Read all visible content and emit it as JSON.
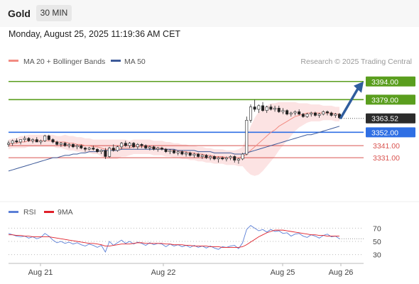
{
  "header": {
    "symbol": "Gold",
    "timeframe": "30 MIN",
    "datetime": "Monday, August 25, 2025 11:19:36 AM CET"
  },
  "legend": {
    "ma20": {
      "label": "MA 20 + Bollinger Bands",
      "color": "#f28b82"
    },
    "ma50": {
      "label": "MA 50",
      "color": "#3d5a99"
    },
    "copyright": "Research © 2025 Trading Central"
  },
  "rsi_legend": {
    "rsi": {
      "label": "RSI",
      "color": "#5b7fd6"
    },
    "ma9": {
      "label": "9MA",
      "color": "#e0202a"
    }
  },
  "levels": [
    {
      "value": "3394.00",
      "color": "#5a9e1e",
      "style": "box"
    },
    {
      "value": "3379.00",
      "color": "#5a9e1e",
      "style": "box"
    },
    {
      "value": "3363.52",
      "color": "#333333",
      "style": "price"
    },
    {
      "value": "3352.00",
      "color": "#2f6fe4",
      "style": "box"
    },
    {
      "value": "3341.00",
      "color": "#d9534f",
      "style": "text"
    },
    {
      "value": "3331.00",
      "color": "#d9534f",
      "style": "text"
    }
  ],
  "x_ticks": [
    "Aug 21",
    "Aug 22",
    "Aug 25",
    "Aug 26"
  ],
  "rsi_ticks": [
    "70",
    "50",
    "30"
  ],
  "chart_data": {
    "type": "candlestick",
    "price_ylim": [
      3300,
      3405
    ],
    "rsi_ylim": [
      20,
      80
    ],
    "ohlc": [
      [
        3342,
        3345,
        3340,
        3343
      ],
      [
        3343,
        3346,
        3341,
        3345
      ],
      [
        3345,
        3347,
        3343,
        3344
      ],
      [
        3344,
        3346,
        3342,
        3346
      ],
      [
        3346,
        3349,
        3344,
        3347
      ],
      [
        3347,
        3348,
        3344,
        3345
      ],
      [
        3345,
        3347,
        3343,
        3346
      ],
      [
        3346,
        3348,
        3344,
        3344
      ],
      [
        3344,
        3346,
        3342,
        3345
      ],
      [
        3345,
        3350,
        3344,
        3349
      ],
      [
        3349,
        3350,
        3345,
        3346
      ],
      [
        3346,
        3347,
        3343,
        3344
      ],
      [
        3344,
        3345,
        3341,
        3342
      ],
      [
        3342,
        3344,
        3340,
        3343
      ],
      [
        3343,
        3344,
        3340,
        3341
      ],
      [
        3341,
        3343,
        3339,
        3342
      ],
      [
        3342,
        3343,
        3339,
        3340
      ],
      [
        3340,
        3342,
        3338,
        3341
      ],
      [
        3341,
        3342,
        3338,
        3339
      ],
      [
        3339,
        3340,
        3336,
        3338
      ],
      [
        3338,
        3340,
        3337,
        3339
      ],
      [
        3339,
        3341,
        3337,
        3338
      ],
      [
        3338,
        3339,
        3335,
        3336
      ],
      [
        3336,
        3338,
        3334,
        3337
      ],
      [
        3337,
        3339,
        3330,
        3332
      ],
      [
        3332,
        3340,
        3331,
        3339
      ],
      [
        3339,
        3342,
        3336,
        3337
      ],
      [
        3337,
        3341,
        3336,
        3340
      ],
      [
        3340,
        3344,
        3338,
        3343
      ],
      [
        3343,
        3345,
        3340,
        3341
      ],
      [
        3341,
        3344,
        3339,
        3343
      ],
      [
        3343,
        3344,
        3339,
        3340
      ],
      [
        3340,
        3343,
        3338,
        3342
      ],
      [
        3342,
        3343,
        3339,
        3341
      ],
      [
        3341,
        3342,
        3338,
        3339
      ],
      [
        3339,
        3341,
        3337,
        3340
      ],
      [
        3340,
        3341,
        3337,
        3338
      ],
      [
        3338,
        3340,
        3336,
        3339
      ],
      [
        3339,
        3340,
        3337,
        3338
      ],
      [
        3338,
        3339,
        3335,
        3336
      ],
      [
        3336,
        3338,
        3334,
        3337
      ],
      [
        3337,
        3338,
        3334,
        3335
      ],
      [
        3335,
        3337,
        3333,
        3336
      ],
      [
        3336,
        3337,
        3333,
        3334
      ],
      [
        3334,
        3336,
        3332,
        3335
      ],
      [
        3335,
        3336,
        3332,
        3333
      ],
      [
        3333,
        3335,
        3331,
        3334
      ],
      [
        3334,
        3335,
        3331,
        3332
      ],
      [
        3332,
        3334,
        3330,
        3333
      ],
      [
        3333,
        3334,
        3330,
        3331
      ],
      [
        3331,
        3333,
        3329,
        3332
      ],
      [
        3332,
        3333,
        3329,
        3330
      ],
      [
        3330,
        3332,
        3327,
        3331
      ],
      [
        3331,
        3332,
        3329,
        3330
      ],
      [
        3330,
        3332,
        3328,
        3331
      ],
      [
        3331,
        3333,
        3329,
        3332
      ],
      [
        3332,
        3333,
        3327,
        3329
      ],
      [
        3329,
        3331,
        3326,
        3330
      ],
      [
        3330,
        3335,
        3329,
        3334
      ],
      [
        3334,
        3365,
        3333,
        3362
      ],
      [
        3362,
        3375,
        3360,
        3373
      ],
      [
        3373,
        3379,
        3369,
        3371
      ],
      [
        3371,
        3375,
        3368,
        3374
      ],
      [
        3374,
        3377,
        3369,
        3370
      ],
      [
        3370,
        3374,
        3368,
        3373
      ],
      [
        3373,
        3375,
        3370,
        3371
      ],
      [
        3371,
        3374,
        3369,
        3372
      ],
      [
        3372,
        3374,
        3368,
        3369
      ],
      [
        3369,
        3372,
        3367,
        3370
      ],
      [
        3370,
        3371,
        3366,
        3367
      ],
      [
        3367,
        3369,
        3365,
        3368
      ],
      [
        3368,
        3370,
        3366,
        3369
      ],
      [
        3369,
        3371,
        3366,
        3367
      ],
      [
        3367,
        3368,
        3364,
        3365
      ],
      [
        3365,
        3368,
        3364,
        3367
      ],
      [
        3367,
        3369,
        3365,
        3368
      ],
      [
        3368,
        3369,
        3365,
        3366
      ],
      [
        3366,
        3368,
        3364,
        3367
      ],
      [
        3367,
        3370,
        3366,
        3369
      ],
      [
        3369,
        3370,
        3366,
        3368
      ],
      [
        3368,
        3369,
        3365,
        3366
      ],
      [
        3366,
        3368,
        3364,
        3367
      ],
      [
        3367,
        3368,
        3363,
        3364
      ]
    ],
    "ma20": [
      3342,
      3343,
      3343,
      3344,
      3344,
      3345,
      3345,
      3345,
      3345,
      3345,
      3345,
      3345,
      3344,
      3344,
      3344,
      3343,
      3343,
      3342,
      3342,
      3341,
      3341,
      3340,
      3340,
      3339,
      3338,
      3338,
      3338,
      3338,
      3339,
      3339,
      3339,
      3340,
      3340,
      3340,
      3340,
      3340,
      3339,
      3339,
      3339,
      3338,
      3338,
      3337,
      3337,
      3336,
      3336,
      3335,
      3335,
      3334,
      3334,
      3333,
      3333,
      3332,
      3332,
      3332,
      3331,
      3331,
      3331,
      3331,
      3332,
      3334,
      3337,
      3340,
      3343,
      3346,
      3349,
      3352,
      3354,
      3357,
      3359,
      3361,
      3363,
      3365,
      3366,
      3367,
      3368,
      3368,
      3368,
      3368,
      3368,
      3368,
      3368,
      3367,
      3367
    ],
    "ma50": [
      3320,
      3321,
      3322,
      3323,
      3324,
      3325,
      3326,
      3327,
      3328,
      3329,
      3330,
      3331,
      3331,
      3332,
      3333,
      3333,
      3334,
      3334,
      3335,
      3335,
      3336,
      3336,
      3336,
      3337,
      3337,
      3337,
      3337,
      3337,
      3338,
      3338,
      3338,
      3338,
      3338,
      3338,
      3338,
      3338,
      3338,
      3338,
      3338,
      3338,
      3338,
      3338,
      3337,
      3337,
      3337,
      3337,
      3337,
      3336,
      3336,
      3336,
      3336,
      3335,
      3335,
      3335,
      3335,
      3335,
      3334,
      3334,
      3334,
      3335,
      3336,
      3337,
      3338,
      3339,
      3340,
      3341,
      3342,
      3343,
      3344,
      3345,
      3346,
      3347,
      3348,
      3349,
      3350,
      3350,
      3351,
      3352,
      3353,
      3354,
      3355,
      3356,
      3357
    ],
    "bb_width": [
      4,
      4,
      4,
      5,
      5,
      5,
      5,
      5,
      5,
      5,
      5,
      5,
      5,
      5,
      6,
      6,
      6,
      6,
      6,
      6,
      6,
      6,
      6,
      7,
      8,
      8,
      8,
      8,
      7,
      7,
      6,
      6,
      6,
      6,
      6,
      6,
      6,
      6,
      6,
      6,
      6,
      6,
      6,
      6,
      6,
      6,
      6,
      6,
      6,
      6,
      6,
      6,
      6,
      6,
      6,
      6,
      6,
      7,
      8,
      14,
      20,
      24,
      26,
      26,
      25,
      24,
      22,
      20,
      18,
      16,
      14,
      12,
      10,
      9,
      8,
      7,
      7,
      7,
      6,
      6,
      6,
      6,
      6
    ],
    "rsi": [
      62,
      60,
      58,
      57,
      58,
      55,
      57,
      54,
      56,
      62,
      58,
      52,
      48,
      50,
      47,
      49,
      46,
      48,
      45,
      43,
      46,
      44,
      41,
      44,
      34,
      50,
      44,
      48,
      52,
      47,
      50,
      46,
      49,
      47,
      44,
      48,
      45,
      47,
      46,
      42,
      46,
      43,
      45,
      42,
      44,
      41,
      44,
      41,
      43,
      40,
      43,
      40,
      38,
      42,
      41,
      43,
      44,
      39,
      48,
      68,
      74,
      70,
      66,
      68,
      64,
      68,
      65,
      66,
      62,
      63,
      58,
      61,
      62,
      58,
      56,
      60,
      58,
      55,
      59,
      61,
      57,
      58,
      54
    ],
    "rsi_ma9": [
      60,
      60,
      59,
      59,
      58,
      58,
      57,
      57,
      57,
      57,
      57,
      56,
      55,
      54,
      53,
      52,
      51,
      50,
      49,
      48,
      47,
      47,
      46,
      45,
      43,
      43,
      44,
      45,
      46,
      46,
      46,
      47,
      48,
      48,
      47,
      47,
      47,
      47,
      47,
      46,
      46,
      45,
      45,
      45,
      44,
      44,
      43,
      43,
      43,
      43,
      42,
      42,
      42,
      41,
      41,
      41,
      41,
      41,
      42,
      45,
      49,
      53,
      57,
      60,
      63,
      65,
      67,
      67,
      67,
      66,
      65,
      64,
      63,
      62,
      61,
      60,
      60,
      59,
      59,
      58,
      58,
      58,
      58
    ]
  }
}
